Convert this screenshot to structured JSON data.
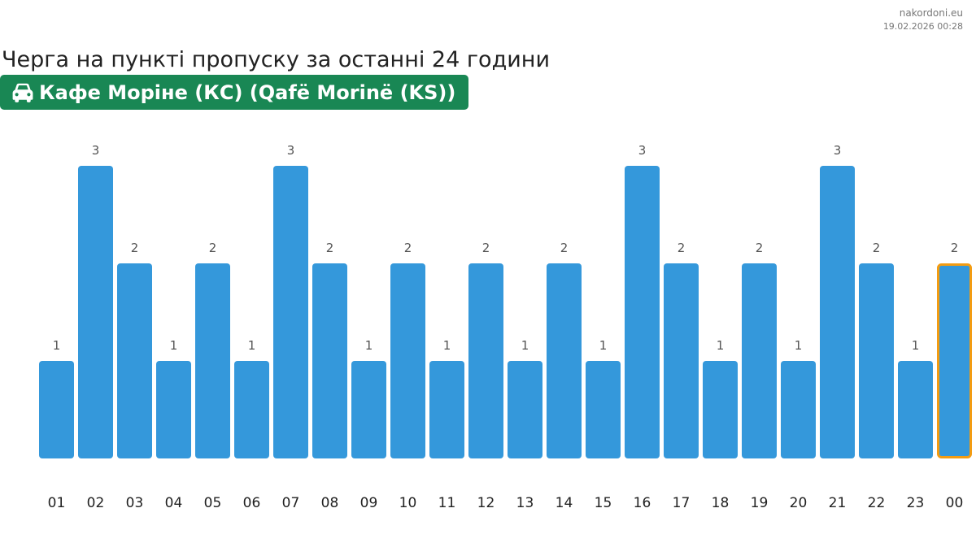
{
  "header": {
    "site": "nakordoni.eu",
    "timestamp": "19.02.2026 00:28",
    "title": "Черга на пункті пропуску за останні 24 години",
    "checkpoint": "Кафе Моріне (КС) (Qafë Morinë (KS))",
    "checkpoint_icon": "car-icon"
  },
  "colors": {
    "bar": "#3498db",
    "highlight": "#f39c12",
    "badge": "#198754"
  },
  "chart_data": {
    "type": "bar",
    "categories": [
      "01",
      "02",
      "03",
      "04",
      "05",
      "06",
      "07",
      "08",
      "09",
      "10",
      "11",
      "12",
      "13",
      "14",
      "15",
      "16",
      "17",
      "18",
      "19",
      "20",
      "21",
      "22",
      "23",
      "00"
    ],
    "values": [
      1,
      3,
      2,
      1,
      2,
      1,
      3,
      2,
      1,
      2,
      1,
      2,
      1,
      2,
      1,
      3,
      2,
      1,
      2,
      1,
      3,
      2,
      1,
      2
    ],
    "highlight_category": "00",
    "ylim": [
      0,
      3
    ],
    "grid": false,
    "data_labels": true
  }
}
